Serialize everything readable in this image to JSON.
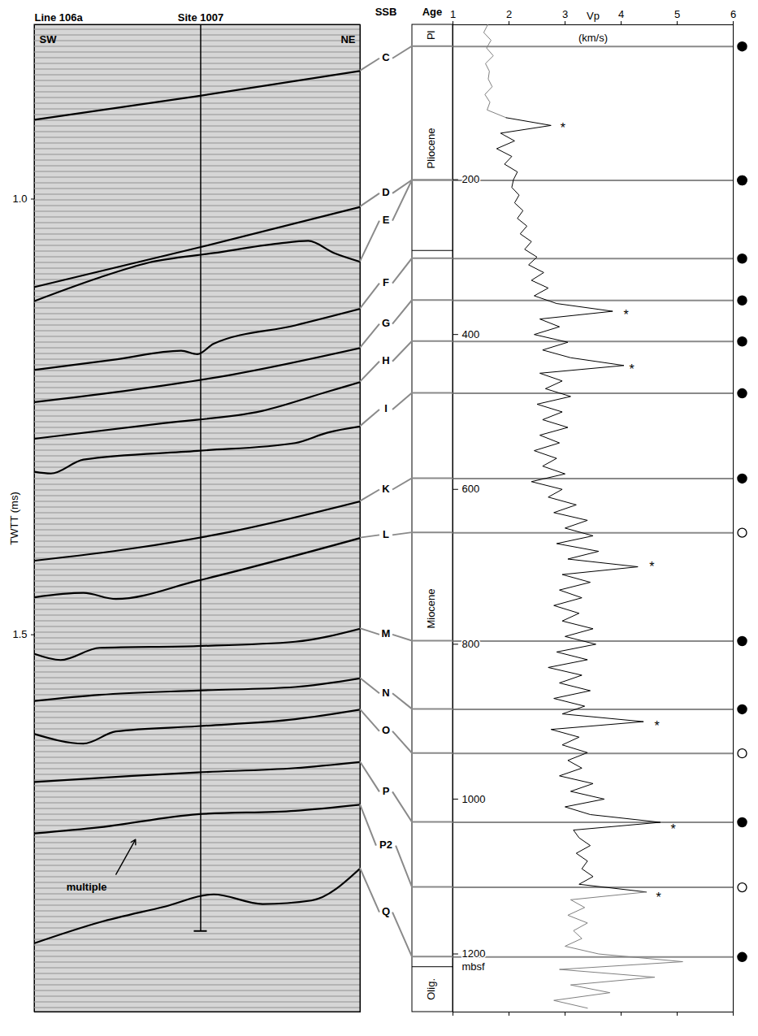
{
  "chart_data": [
    {
      "type": "seismic_section",
      "title": "Line 106a",
      "site_label": "Site 1007",
      "site_x": 51,
      "site_base": 1.84,
      "left_label": "SW",
      "right_label": "NE",
      "ylabel": "TWTT (ms)",
      "xlim": [
        0,
        100
      ],
      "ylim": [
        0.8,
        1.933
      ],
      "yticks": [
        {
          "value": 1.0,
          "label": "1.0"
        },
        {
          "value": 1.5,
          "label": "1.5"
        }
      ],
      "horizons": [
        {
          "name": "C",
          "x": [
            0,
            50,
            100
          ],
          "y": [
            0.909,
            0.882,
            0.853
          ]
        },
        {
          "name": "D",
          "x": [
            0,
            50,
            100
          ],
          "y": [
            1.101,
            1.056,
            1.009
          ]
        },
        {
          "name": "E",
          "x": [
            0,
            20,
            35,
            55,
            75,
            84,
            92,
            100
          ],
          "y": [
            1.117,
            1.09,
            1.073,
            1.062,
            1.051,
            1.048,
            1.062,
            1.072
          ]
        },
        {
          "name": "F",
          "x": [
            0,
            25,
            45,
            50,
            55,
            80,
            100
          ],
          "y": [
            1.196,
            1.184,
            1.174,
            1.178,
            1.166,
            1.145,
            1.126
          ]
        },
        {
          "name": "G",
          "x": [
            0,
            30,
            60,
            100
          ],
          "y": [
            1.233,
            1.219,
            1.202,
            1.171
          ]
        },
        {
          "name": "H",
          "x": [
            0,
            40,
            70,
            90,
            100
          ],
          "y": [
            1.275,
            1.257,
            1.243,
            1.221,
            1.21
          ]
        },
        {
          "name": "I",
          "x": [
            0,
            5,
            15,
            50,
            80,
            90,
            100
          ],
          "y": [
            1.313,
            1.315,
            1.299,
            1.289,
            1.28,
            1.268,
            1.261
          ]
        },
        {
          "name": "K",
          "x": [
            0,
            30,
            60,
            100
          ],
          "y": [
            1.415,
            1.401,
            1.382,
            1.347
          ]
        },
        {
          "name": "L",
          "x": [
            0,
            15,
            25,
            50,
            100
          ],
          "y": [
            1.457,
            1.452,
            1.459,
            1.438,
            1.389
          ]
        },
        {
          "name": "M",
          "x": [
            0,
            8,
            20,
            50,
            80,
            100
          ],
          "y": [
            1.522,
            1.529,
            1.515,
            1.513,
            1.508,
            1.493
          ]
        },
        {
          "name": "N",
          "x": [
            0,
            20,
            50,
            80,
            100
          ],
          "y": [
            1.576,
            1.569,
            1.564,
            1.56,
            1.55
          ]
        },
        {
          "name": "O",
          "x": [
            0,
            15,
            25,
            50,
            80,
            100
          ],
          "y": [
            1.614,
            1.625,
            1.611,
            1.605,
            1.597,
            1.586
          ]
        },
        {
          "name": "P",
          "x": [
            0,
            30,
            50,
            80,
            100
          ],
          "y": [
            1.669,
            1.662,
            1.658,
            1.653,
            1.646
          ]
        },
        {
          "name": "P2",
          "x": [
            0,
            20,
            50,
            80,
            100
          ],
          "y": [
            1.728,
            1.721,
            1.706,
            1.702,
            1.695
          ]
        },
        {
          "name": "Q",
          "x": [
            0,
            20,
            40,
            55,
            70,
            85,
            100
          ],
          "y": [
            1.854,
            1.83,
            1.812,
            1.798,
            1.809,
            1.805,
            1.768
          ]
        }
      ],
      "annotation": {
        "text": "multiple",
        "x": 16,
        "y": 1.79,
        "arrow_start": [
          25,
          1.775
        ],
        "arrow_end": [
          31,
          1.735
        ]
      }
    },
    {
      "type": "line",
      "xlabel": "Vp",
      "xunit": "(km/s)",
      "ylabel": "mbsf",
      "ssb_header": "SSB",
      "age_header": "Age",
      "xlim": [
        1,
        6
      ],
      "xticks": [
        1,
        2,
        3,
        4,
        5,
        6
      ],
      "ylim": [
        0,
        1275
      ],
      "yticks": [
        200,
        400,
        600,
        800,
        1000,
        1200
      ],
      "series": [
        {
          "color": "#808080",
          "depth": [
            0,
            10,
            20,
            30,
            40,
            50,
            60,
            70,
            80,
            90,
            100,
            110,
            120
          ],
          "values": [
            1.62,
            1.55,
            1.68,
            1.6,
            1.72,
            1.58,
            1.65,
            1.63,
            1.7,
            1.57,
            1.66,
            1.61,
            1.95
          ]
        },
        {
          "color": "#000000",
          "depth": [
            120,
            130,
            140,
            150,
            160,
            170,
            180,
            190,
            200,
            210,
            220,
            230,
            240,
            250,
            260,
            270,
            280,
            290,
            300,
            310,
            320,
            330,
            340,
            350,
            360,
            370,
            380,
            390,
            400,
            410,
            420,
            430,
            440,
            450,
            460,
            470,
            480,
            490,
            500,
            510,
            520,
            530,
            540,
            550,
            560,
            570,
            580,
            590,
            600,
            610,
            620,
            630,
            640,
            650,
            660,
            670,
            680,
            690,
            700,
            710,
            720,
            730,
            740,
            750,
            760,
            770,
            780,
            790,
            800,
            810,
            820,
            830,
            840,
            850,
            860,
            870,
            880,
            890,
            900,
            910,
            920,
            930,
            940,
            950,
            960,
            970,
            980,
            990,
            1000,
            1010,
            1020,
            1030,
            1040,
            1050,
            1060,
            1070,
            1080,
            1090,
            1100,
            1110,
            1120
          ],
          "values": [
            1.95,
            2.75,
            1.85,
            2.1,
            1.78,
            2.05,
            1.92,
            2.15,
            2.08,
            2.05,
            2.18,
            2.1,
            2.25,
            2.15,
            2.32,
            2.2,
            2.4,
            2.28,
            2.5,
            2.35,
            2.62,
            2.4,
            2.7,
            2.45,
            2.85,
            3.85,
            2.55,
            2.9,
            2.45,
            3.05,
            2.6,
            3.1,
            4.05,
            2.55,
            2.95,
            2.65,
            3.1,
            2.5,
            2.95,
            2.6,
            3.05,
            2.55,
            2.9,
            2.45,
            2.85,
            2.6,
            3.0,
            2.4,
            2.95,
            2.7,
            3.2,
            2.8,
            3.4,
            3.0,
            3.5,
            2.85,
            3.6,
            3.05,
            4.3,
            2.95,
            3.45,
            2.9,
            3.3,
            2.8,
            3.25,
            2.95,
            3.5,
            3.0,
            3.55,
            2.85,
            3.4,
            2.7,
            3.3,
            2.9,
            3.45,
            2.8,
            3.35,
            2.95,
            4.4,
            2.75,
            3.25,
            2.95,
            3.4,
            3.05,
            3.3,
            2.9,
            3.5,
            3.1,
            3.7,
            3.0,
            3.45,
            4.7,
            3.15,
            3.25,
            3.45,
            3.2,
            3.4,
            3.3,
            3.5,
            3.25,
            4.45
          ]
        },
        {
          "color": "#808080",
          "depth": [
            1120,
            1130,
            1140,
            1150,
            1160,
            1170,
            1180,
            1190,
            1200,
            1210,
            1220,
            1230,
            1240,
            1250,
            1260,
            1270
          ],
          "values": [
            4.45,
            3.1,
            3.35,
            3.05,
            3.4,
            3.15,
            3.3,
            3.0,
            3.6,
            5.1,
            2.9,
            4.6,
            3.1,
            3.8,
            2.8,
            3.4
          ]
        }
      ],
      "asterisks": {
        "label": "*",
        "depth": [
          129,
          371,
          441,
          696,
          902,
          1035,
          1123
        ],
        "vp": [
          2.96,
          4.09,
          4.19,
          4.55,
          4.64,
          4.93,
          4.67
        ]
      },
      "boundaries": [
        {
          "name": "C",
          "depth": 28,
          "marker": "filled"
        },
        {
          "name": "D",
          "depth": 201,
          "marker": "filled"
        },
        {
          "name": "E",
          "depth": 201,
          "marker": "filled"
        },
        {
          "name": "F",
          "depth": 302,
          "marker": "filled"
        },
        {
          "name": "G",
          "depth": 356,
          "marker": "filled"
        },
        {
          "name": "H",
          "depth": 409,
          "marker": "filled"
        },
        {
          "name": "I",
          "depth": 476,
          "marker": "filled"
        },
        {
          "name": "K",
          "depth": 586,
          "marker": "filled"
        },
        {
          "name": "L",
          "depth": 656,
          "marker": "open"
        },
        {
          "name": "M",
          "depth": 796,
          "marker": "filled"
        },
        {
          "name": "N",
          "depth": 884,
          "marker": "filled"
        },
        {
          "name": "O",
          "depth": 941,
          "marker": "open"
        },
        {
          "name": "P",
          "depth": 1030,
          "marker": "filled"
        },
        {
          "name": "P2",
          "depth": 1114,
          "marker": "open"
        },
        {
          "name": "Q",
          "depth": 1204,
          "marker": "filled"
        }
      ],
      "ages": [
        {
          "label": "Pl",
          "top": 0
        },
        {
          "label": "Pliocene",
          "top": 28
        },
        {
          "label": "Miocene",
          "top": 292
        },
        {
          "label": "Olig.",
          "top": 1217
        }
      ]
    }
  ]
}
